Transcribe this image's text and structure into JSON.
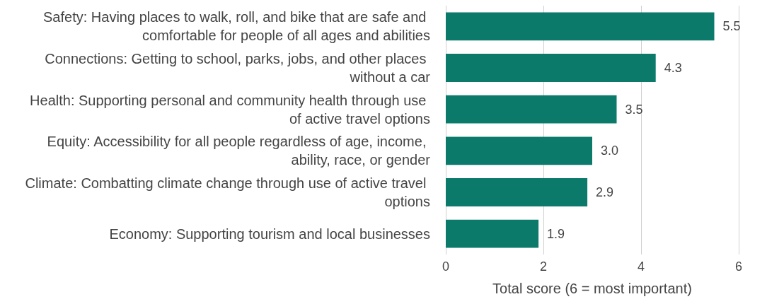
{
  "chart_data": {
    "type": "bar",
    "orientation": "horizontal",
    "categories": [
      "Safety: Having places to walk, roll, and bike that are safe and comfortable for people of all ages and abilities",
      "Connections: Getting to school, parks, jobs, and other places without a car",
      "Health: Supporting personal and community health through use of active travel options",
      "Equity: Accessibility for all people regardless of age, income, ability, race, or gender",
      "Climate: Combatting climate change through use of active travel options",
      "Economy: Supporting tourism and local businesses"
    ],
    "values": [
      5.5,
      4.3,
      3.5,
      3.0,
      2.9,
      1.9
    ],
    "value_labels": [
      "5.5",
      "4.3",
      "3.5",
      "3.0",
      "2.9",
      "1.9"
    ],
    "color": "#0b7a6b",
    "xlabel": "Total score (6 = most important)",
    "xlim": [
      0,
      6
    ],
    "xticks": [
      0,
      2,
      4,
      6
    ],
    "grid": "x"
  }
}
